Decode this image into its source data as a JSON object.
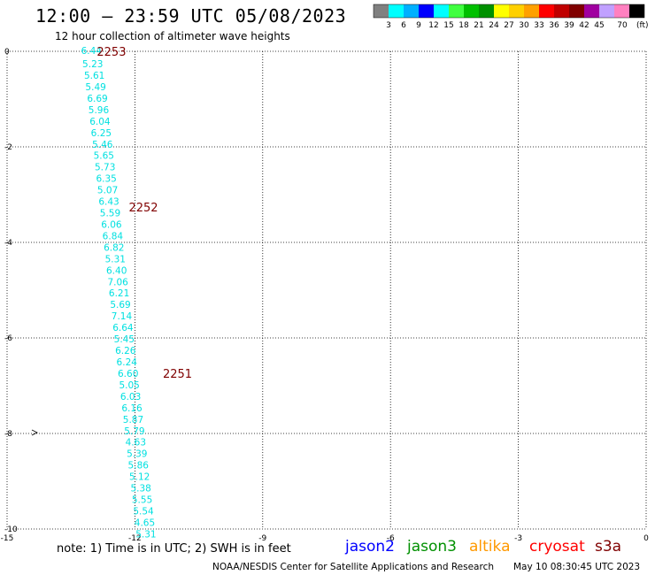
{
  "header": {
    "title": "12:00 — 23:59 UTC 05/08/2023",
    "subtitle": "12 hour collection of altimeter wave heights"
  },
  "legend": {
    "colors": [
      "#808080",
      "#00ffff",
      "#00b0ff",
      "#0000ff",
      "#00ffff",
      "#40ff40",
      "#00c000",
      "#009000",
      "#ffff00",
      "#ffd000",
      "#ffa000",
      "#ff0000",
      "#c00000",
      "#800000",
      "#a000a0",
      "#c0a0ff",
      "#ff80c0",
      "#000000"
    ],
    "labels": [
      "3",
      "6",
      "9",
      "12",
      "15",
      "18",
      "21",
      "24",
      "27",
      "30",
      "33",
      "36",
      "39",
      "42",
      "45",
      "70"
    ],
    "unit": "(ft)"
  },
  "chart_data": {
    "type": "scatter",
    "title": "12:00 — 23:59 UTC 05/08/2023",
    "subtitle": "12 hour collection of altimeter wave heights",
    "xlim": [
      -15,
      0
    ],
    "ylim": [
      -10,
      0
    ],
    "x_ticks": [
      "-15",
      "-12",
      "-9",
      "-6",
      "-3",
      "0"
    ],
    "y_ticks": [
      "0",
      "-2",
      "-4",
      "-6",
      "-8",
      "-10"
    ],
    "grid": true,
    "series": [
      {
        "name": "cryosat",
        "color": "#00e0e0",
        "points": [
          {
            "x": -13.02,
            "y": 0.02,
            "label": "6.44"
          },
          {
            "x": -12.99,
            "y": -0.26,
            "label": "5.23"
          },
          {
            "x": -12.95,
            "y": -0.5,
            "label": "5.61"
          },
          {
            "x": -12.92,
            "y": -0.74,
            "label": "5.49"
          },
          {
            "x": -12.88,
            "y": -0.98,
            "label": "6.69"
          },
          {
            "x": -12.85,
            "y": -1.22,
            "label": "5.96"
          },
          {
            "x": -12.82,
            "y": -1.46,
            "label": "6.04"
          },
          {
            "x": -12.79,
            "y": -1.7,
            "label": "6.25"
          },
          {
            "x": -12.76,
            "y": -1.94,
            "label": "5.46"
          },
          {
            "x": -12.73,
            "y": -2.18,
            "label": "5.65"
          },
          {
            "x": -12.7,
            "y": -2.42,
            "label": "5.73"
          },
          {
            "x": -12.67,
            "y": -2.66,
            "label": "6.35"
          },
          {
            "x": -12.64,
            "y": -2.9,
            "label": "5.07"
          },
          {
            "x": -12.61,
            "y": -3.14,
            "label": "6.43"
          },
          {
            "x": -12.58,
            "y": -3.38,
            "label": "5.59"
          },
          {
            "x": -12.55,
            "y": -3.62,
            "label": "6.06"
          },
          {
            "x": -12.52,
            "y": -3.86,
            "label": "6.84"
          },
          {
            "x": -12.49,
            "y": -4.1,
            "label": "6.82"
          },
          {
            "x": -12.46,
            "y": -4.34,
            "label": "5.31"
          },
          {
            "x": -12.43,
            "y": -4.58,
            "label": "6.40"
          },
          {
            "x": -12.4,
            "y": -4.82,
            "label": "7.06"
          },
          {
            "x": -12.37,
            "y": -5.06,
            "label": "6.21"
          },
          {
            "x": -12.34,
            "y": -5.3,
            "label": "5.69"
          },
          {
            "x": -12.31,
            "y": -5.54,
            "label": "7.14"
          },
          {
            "x": -12.28,
            "y": -5.78,
            "label": "6.64"
          },
          {
            "x": -12.25,
            "y": -6.02,
            "label": "5.45"
          },
          {
            "x": -12.22,
            "y": -6.26,
            "label": "6.26"
          },
          {
            "x": -12.19,
            "y": -6.5,
            "label": "6.24"
          },
          {
            "x": -12.16,
            "y": -6.74,
            "label": "6.60"
          },
          {
            "x": -12.13,
            "y": -6.98,
            "label": "5.05"
          },
          {
            "x": -12.1,
            "y": -7.22,
            "label": "6.03"
          },
          {
            "x": -12.07,
            "y": -7.46,
            "label": "6.16"
          },
          {
            "x": -12.04,
            "y": -7.7,
            "label": "5.87"
          },
          {
            "x": -12.01,
            "y": -7.94,
            "label": "5.79"
          },
          {
            "x": -11.98,
            "y": -8.18,
            "label": "4.63"
          },
          {
            "x": -11.95,
            "y": -8.42,
            "label": "5.39"
          },
          {
            "x": -11.92,
            "y": -8.66,
            "label": "5.86"
          },
          {
            "x": -11.89,
            "y": -8.9,
            "label": "5.12"
          },
          {
            "x": -11.86,
            "y": -9.14,
            "label": "5.38"
          },
          {
            "x": -11.83,
            "y": -9.38,
            "label": "5.55"
          },
          {
            "x": -11.8,
            "y": -9.62,
            "label": "5.54"
          },
          {
            "x": -11.77,
            "y": -9.86,
            "label": "4.65"
          },
          {
            "x": -11.74,
            "y": -10.1,
            "label": "5.31"
          }
        ]
      }
    ],
    "time_labels": [
      {
        "x": -12.55,
        "y": 0.0,
        "label": "2253"
      },
      {
        "x": -11.8,
        "y": -3.26,
        "label": "2252"
      },
      {
        "x": -11.0,
        "y": -6.74,
        "label": "2251"
      }
    ],
    "time_label_color": "#800000"
  },
  "notes": {
    "note": "note:  1) Time is in UTC;  2) SWH is in feet",
    "satellites": [
      {
        "name": "jason2",
        "color": "#0000ff"
      },
      {
        "name": "jason3",
        "color": "#009000"
      },
      {
        "name": "altika",
        "color": "#ff9900"
      },
      {
        "name": "cryosat",
        "color": "#ff0000"
      },
      {
        "name": "s3a",
        "color": "#800000"
      }
    ],
    "credit": "NOAA/NESDIS Center for Satellite Applications and Research",
    "timestamp": "May 10 08:30:45 UTC 2023"
  }
}
